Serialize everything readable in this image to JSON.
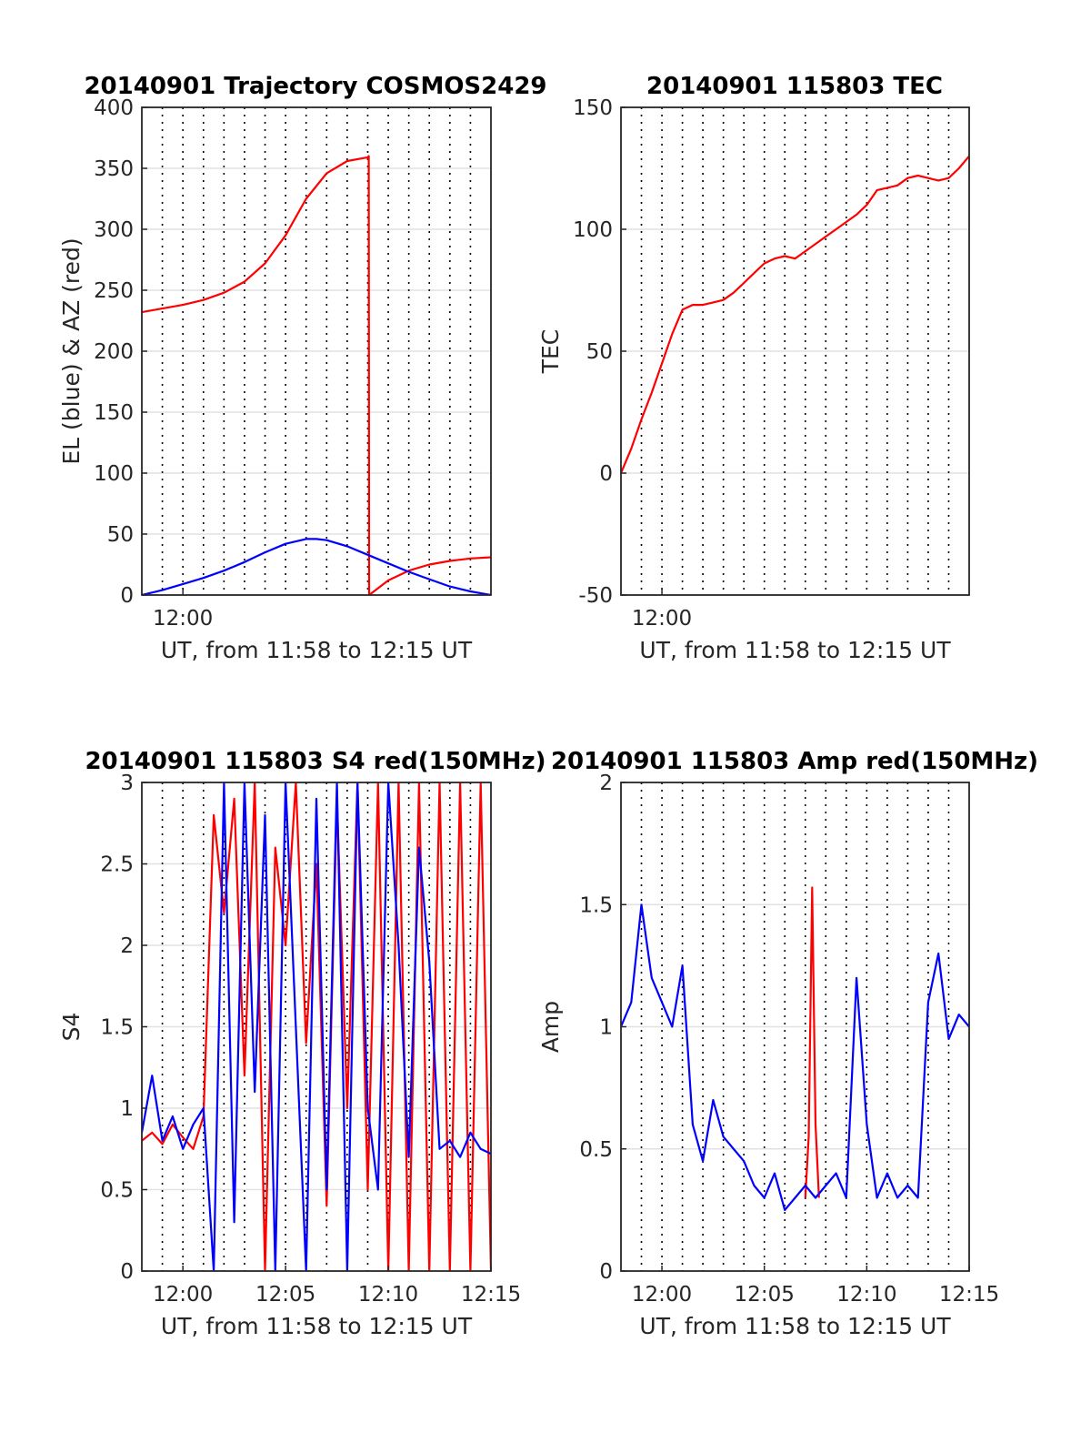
{
  "chart_data": [
    {
      "type": "line",
      "title": "20140901 Trajectory COSMOS2429",
      "xlabel": "UT, from 11:58 to 12:15 UT",
      "ylabel": "EL (blue) & AZ (red)",
      "xlim": [
        "11:58",
        "12:15"
      ],
      "ylim": [
        0,
        400
      ],
      "yticks": [
        0,
        50,
        100,
        150,
        200,
        250,
        300,
        350,
        400
      ],
      "xtick_labels": [
        "12:00"
      ],
      "vertical_grid": "dotted, every 1 min",
      "horizontal_grid": true,
      "series": [
        {
          "color": "#ff0000",
          "x": [
            "11:58",
            "11:59",
            "12:00",
            "12:01",
            "12:02",
            "12:03",
            "12:04",
            "12:05",
            "12:05:30",
            "12:06",
            "12:07",
            "12:08",
            "12:09",
            "12:09:03",
            "12:09:04",
            "12:10",
            "12:11",
            "12:12",
            "12:13",
            "12:14",
            "12:15"
          ],
          "values": [
            232,
            235,
            238,
            242,
            248,
            257,
            272,
            295,
            310,
            325,
            346,
            356,
            359,
            360,
            0,
            12,
            20,
            25,
            28,
            30,
            31
          ]
        },
        {
          "color": "#0000ff",
          "x": [
            "11:58",
            "11:59",
            "12:00",
            "12:01",
            "12:02",
            "12:03",
            "12:04",
            "12:05",
            "12:06",
            "12:06:30",
            "12:07",
            "12:08",
            "12:09",
            "12:10",
            "12:11",
            "12:12",
            "12:13",
            "12:14",
            "12:15"
          ],
          "values": [
            0,
            4,
            9,
            14,
            20,
            27,
            35,
            42,
            46,
            46,
            45,
            40,
            33,
            26,
            19,
            13,
            7,
            3,
            0
          ]
        }
      ]
    },
    {
      "type": "line",
      "title": "20140901 115803 TEC",
      "xlabel": "UT, from 11:58 to 12:15 UT",
      "ylabel": "TEC",
      "xlim": [
        "11:58",
        "12:15"
      ],
      "ylim": [
        -50,
        150
      ],
      "yticks": [
        -50,
        0,
        50,
        100,
        150
      ],
      "xtick_labels": [
        "12:00"
      ],
      "vertical_grid": "dotted, every 1 min",
      "horizontal_grid": true,
      "series": [
        {
          "color": "#ff0000",
          "x": [
            "11:58",
            "11:58:30",
            "11:59",
            "11:59:30",
            "12:00",
            "12:00:30",
            "12:01",
            "12:01:30",
            "12:02",
            "12:02:30",
            "12:03",
            "12:03:30",
            "12:04",
            "12:04:30",
            "12:05",
            "12:05:30",
            "12:06",
            "12:06:30",
            "12:07",
            "12:07:30",
            "12:08",
            "12:08:30",
            "12:09",
            "12:09:30",
            "12:10",
            "12:10:30",
            "12:11",
            "12:11:30",
            "12:12",
            "12:12:30",
            "12:13",
            "12:13:30",
            "12:14",
            "12:14:30",
            "12:15"
          ],
          "values": [
            0,
            10,
            22,
            33,
            45,
            57,
            67,
            69,
            69,
            70,
            71,
            74,
            78,
            82,
            86,
            88,
            89,
            88,
            91,
            94,
            97,
            100,
            103,
            106,
            110,
            116,
            117,
            118,
            121,
            122,
            121,
            120,
            121,
            125,
            130
          ]
        }
      ]
    },
    {
      "type": "line",
      "title": "20140901 115803 S4 red(150MHz)",
      "xlabel": "UT, from 11:58 to 12:15 UT",
      "ylabel": "S4",
      "xlim": [
        "11:58",
        "12:15"
      ],
      "ylim": [
        0,
        3
      ],
      "yticks": [
        0,
        0.5,
        1,
        1.5,
        2,
        2.5,
        3
      ],
      "xtick_labels": [
        "12:00",
        "12:05",
        "12:10",
        "12:15"
      ],
      "vertical_grid": "dotted, every 1 min",
      "horizontal_grid": true,
      "series": [
        {
          "color": "#ff0000",
          "x": [
            "11:58",
            "11:58:30",
            "11:59",
            "11:59:30",
            "12:00",
            "12:00:30",
            "12:01",
            "12:01:30",
            "12:02",
            "12:02:30",
            "12:03",
            "12:03:30",
            "12:04",
            "12:04:30",
            "12:05",
            "12:05:30",
            "12:06",
            "12:06:30",
            "12:07",
            "12:07:30",
            "12:08",
            "12:08:30",
            "12:09",
            "12:09:30",
            "12:10",
            "12:10:30",
            "12:11",
            "12:11:30",
            "12:12",
            "12:12:30",
            "12:13",
            "12:13:30",
            "12:14",
            "12:14:30",
            "12:15"
          ],
          "values": [
            0.8,
            0.85,
            0.78,
            0.9,
            0.82,
            0.75,
            0.95,
            2.8,
            2.2,
            2.9,
            1.2,
            3.0,
            0.0,
            2.6,
            2.0,
            3.0,
            1.4,
            2.5,
            0.4,
            2.9,
            1.0,
            3.0,
            0.5,
            3.0,
            0.0,
            3.0,
            0.0,
            3.0,
            0.0,
            3.0,
            0.0,
            3.0,
            0.0,
            3.0,
            0.0
          ]
        },
        {
          "color": "#0000ff",
          "x": [
            "11:58",
            "11:58:30",
            "11:59",
            "11:59:30",
            "12:00",
            "12:00:30",
            "12:01",
            "12:01:30",
            "12:02",
            "12:02:30",
            "12:03",
            "12:03:30",
            "12:04",
            "12:04:30",
            "12:05",
            "12:05:30",
            "12:06",
            "12:06:30",
            "12:07",
            "12:07:30",
            "12:08",
            "12:08:30",
            "12:09",
            "12:09:30",
            "12:10",
            "12:10:30",
            "12:11",
            "12:11:30",
            "12:12",
            "12:12:30",
            "12:13",
            "12:13:30",
            "12:14",
            "12:14:30",
            "12:15"
          ],
          "values": [
            0.85,
            1.2,
            0.8,
            0.95,
            0.75,
            0.9,
            1.0,
            0.0,
            3.0,
            0.3,
            3.0,
            1.1,
            2.8,
            0.0,
            3.0,
            1.5,
            0.0,
            2.9,
            0.5,
            3.0,
            0.0,
            3.0,
            1.0,
            0.5,
            3.0,
            2.0,
            0.7,
            2.6,
            1.9,
            0.75,
            0.8,
            0.7,
            0.85,
            0.75,
            0.72
          ]
        }
      ]
    },
    {
      "type": "line",
      "title": "20140901 115803 Amp red(150MHz)",
      "xlabel": "UT, from 11:58 to 12:15 UT",
      "ylabel": "Amp",
      "xlim": [
        "11:58",
        "12:15"
      ],
      "ylim": [
        0,
        2
      ],
      "yticks": [
        0,
        0.5,
        1,
        1.5,
        2
      ],
      "xtick_labels": [
        "12:00",
        "12:05",
        "12:10",
        "12:15"
      ],
      "vertical_grid": "dotted, every 1 min",
      "horizontal_grid": true,
      "series": [
        {
          "color": "#ff0000",
          "x": [
            "12:07:00",
            "12:07:10",
            "12:07:20",
            "12:07:30",
            "12:07:40"
          ],
          "values": [
            0.3,
            0.55,
            1.57,
            0.6,
            0.3
          ]
        },
        {
          "color": "#0000ff",
          "x": [
            "11:58",
            "11:58:30",
            "11:59",
            "11:59:30",
            "12:00",
            "12:00:30",
            "12:01",
            "12:01:30",
            "12:02",
            "12:02:30",
            "12:03",
            "12:03:30",
            "12:04",
            "12:04:30",
            "12:05",
            "12:05:30",
            "12:06",
            "12:06:30",
            "12:07",
            "12:07:30",
            "12:08",
            "12:08:30",
            "12:09",
            "12:09:30",
            "12:10",
            "12:10:30",
            "12:11",
            "12:11:30",
            "12:12",
            "12:12:30",
            "12:13",
            "12:13:30",
            "12:14",
            "12:14:30",
            "12:15"
          ],
          "values": [
            1.0,
            1.1,
            1.5,
            1.2,
            1.1,
            1.0,
            1.25,
            0.6,
            0.45,
            0.7,
            0.55,
            0.5,
            0.45,
            0.35,
            0.3,
            0.4,
            0.25,
            0.3,
            0.35,
            0.3,
            0.35,
            0.4,
            0.3,
            1.2,
            0.6,
            0.3,
            0.4,
            0.3,
            0.35,
            0.3,
            1.1,
            1.3,
            0.95,
            1.05,
            1.0
          ]
        }
      ]
    }
  ]
}
